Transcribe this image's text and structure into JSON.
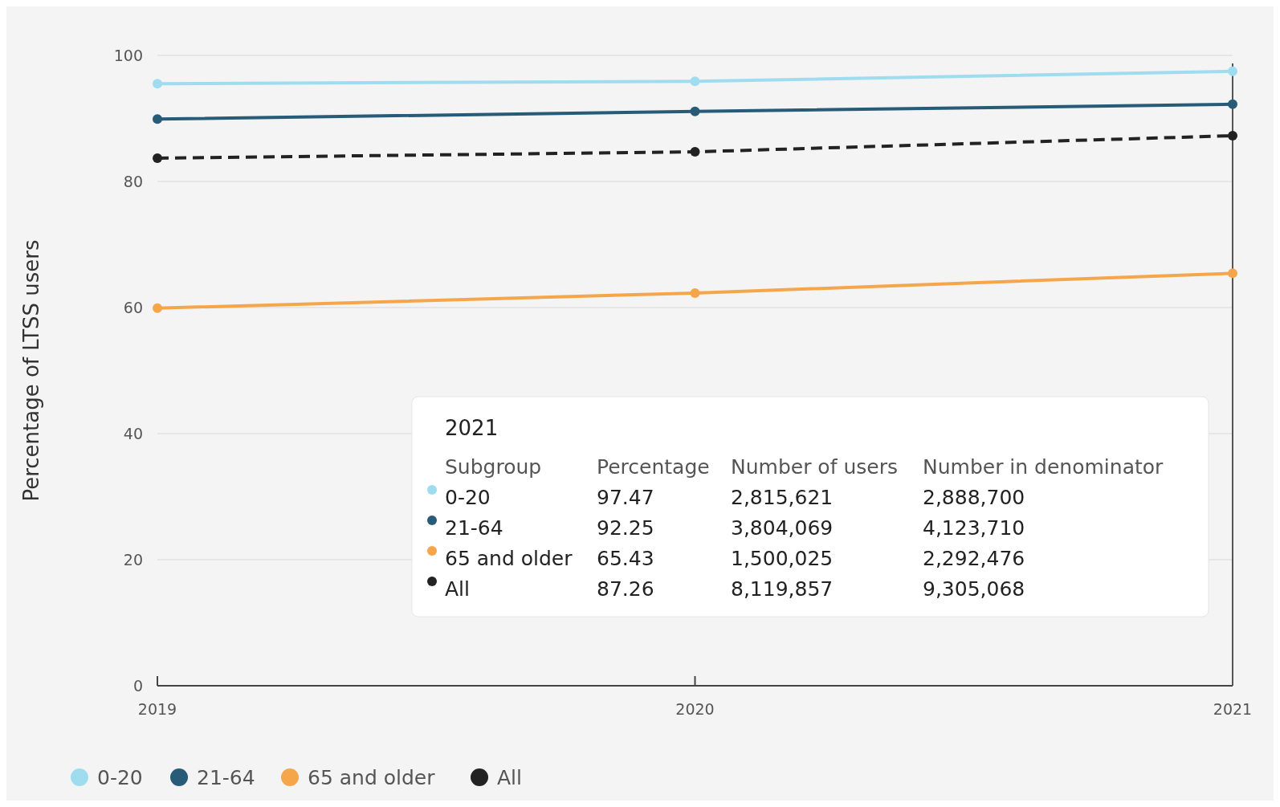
{
  "chart_data": {
    "type": "line",
    "ylabel": "Percentage of LTSS users",
    "x": [
      2019,
      2020,
      2021
    ],
    "xlim": [
      2019,
      2021
    ],
    "xticks": [
      2019,
      2020,
      2021
    ],
    "ylim": [
      0,
      100
    ],
    "yticks": [
      0,
      20,
      40,
      60,
      80,
      100
    ],
    "grid": "y",
    "legend": "bottom left",
    "marker": "circle",
    "series": [
      {
        "name": "0-20",
        "color": "#9fdcf0",
        "values": [
          95.5,
          95.9,
          97.47
        ]
      },
      {
        "name": "21-64",
        "color": "#275b78",
        "values": [
          89.9,
          91.1,
          92.25
        ]
      },
      {
        "name": "65 and older",
        "color": "#f5a64a",
        "values": [
          59.9,
          62.3,
          65.43
        ]
      },
      {
        "name": "All",
        "color": "#222222",
        "values": [
          83.7,
          84.7,
          87.26
        ],
        "line_style": "dashed"
      }
    ],
    "ref_lines": [
      {
        "axis": "x",
        "value": 2021,
        "color": "#555555"
      }
    ],
    "annotations": [
      "2021",
      "Subgroup",
      "Percentage",
      "Number of users",
      "Number in denominator",
      "97.47",
      "2,815,621",
      "2,888,700",
      "92.25",
      "3,804,069",
      "4,123,710",
      "65.43",
      "1,500,025",
      "2,292,476",
      "87.26",
      "8,119,857",
      "9,305,068"
    ]
  }
}
